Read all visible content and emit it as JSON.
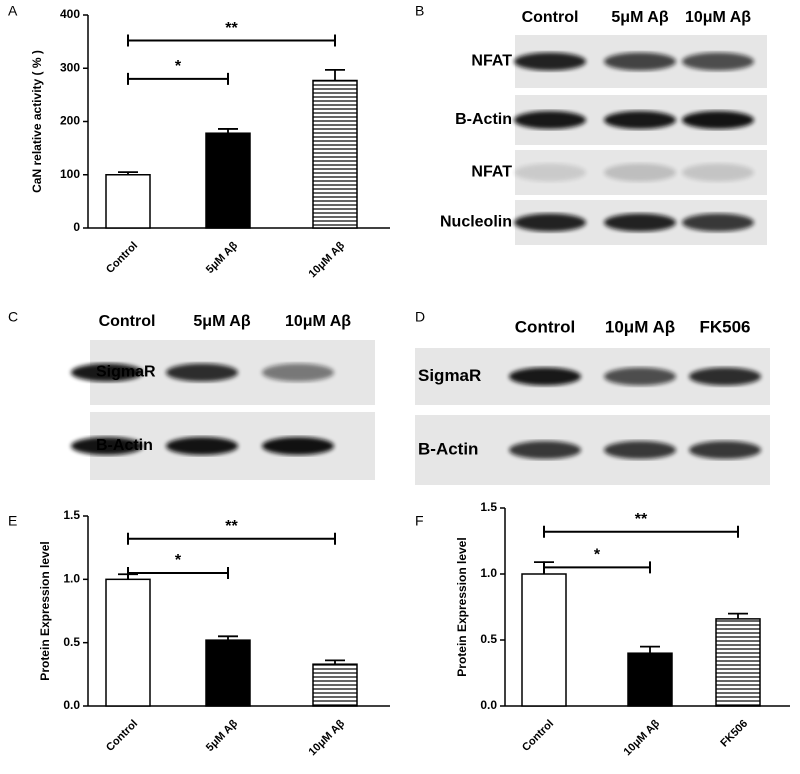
{
  "chart_data": [
    {
      "type": "bar",
      "panel": "A",
      "ylabel": "CaN relative activity ( % )",
      "categories": [
        "Control",
        "5μM Aβ",
        "10μM Aβ"
      ],
      "values": [
        100,
        178,
        277
      ],
      "errors": [
        5,
        8,
        20
      ],
      "fills": [
        "white",
        "black",
        "hlines"
      ],
      "ylim": [
        0,
        400
      ],
      "yticks": [
        0,
        100,
        200,
        300,
        400
      ],
      "annotations": [
        "*",
        "**"
      ]
    },
    {
      "type": "bar",
      "panel": "E",
      "ylabel": "Protein Expression level",
      "categories": [
        "Control",
        "5μM Aβ",
        "10μM Aβ"
      ],
      "values": [
        1.0,
        0.52,
        0.33
      ],
      "errors": [
        0.04,
        0.03,
        0.03
      ],
      "fills": [
        "white",
        "black",
        "hlines"
      ],
      "ylim": [
        0,
        1.5
      ],
      "yticks": [
        {
          "value": 0,
          "label": "0.0"
        },
        0.5,
        {
          "value": 1,
          "label": "1.0"
        },
        1.5
      ],
      "annotations": [
        "*",
        "**"
      ]
    },
    {
      "type": "bar",
      "panel": "F",
      "ylabel": "Protein Expression level",
      "categories": [
        "Control",
        "10μM Aβ",
        "FK506"
      ],
      "values": [
        1.0,
        0.4,
        0.66
      ],
      "errors": [
        0.09,
        0.05,
        0.04
      ],
      "fills": [
        "white",
        "black",
        "hlines"
      ],
      "ylim": [
        0,
        1.5
      ],
      "yticks": [
        {
          "value": 0,
          "label": "0.0"
        },
        0.5,
        {
          "value": 1,
          "label": "1.0"
        },
        1.5
      ],
      "annotations": [
        "*",
        "**"
      ]
    }
  ],
  "blots": [
    {
      "panel": "B",
      "lanes": [
        "Control",
        "5μM Aβ",
        "10μM Aβ"
      ],
      "rows": [
        "NFAT",
        "B-Actin",
        "NFAT",
        "Nucleolin"
      ]
    },
    {
      "panel": "C",
      "lanes": [
        "Control",
        "5μM Aβ",
        "10μM Aβ"
      ],
      "rows": [
        "SigmaR",
        "B-Actin"
      ]
    },
    {
      "panel": "D",
      "lanes": [
        "Control",
        "10μM Aβ",
        "FK506"
      ],
      "rows": [
        "SigmaR",
        "B-Actin"
      ]
    }
  ]
}
